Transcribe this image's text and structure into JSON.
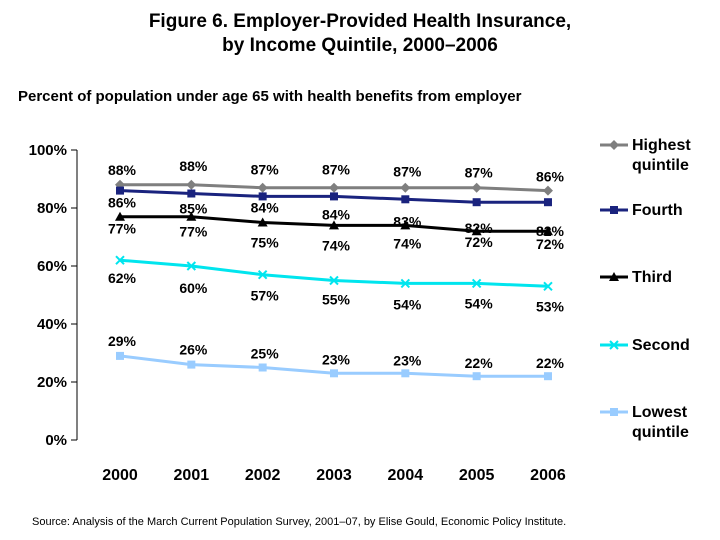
{
  "title_line1": "Figure 6. Employer-Provided Health Insurance,",
  "title_line2": "by Income Quintile, 2000–2006",
  "subtitle": "Percent of population under age 65 with health benefits from employer",
  "source": "Source: Analysis of the March Current Population Survey, 2001–07, by Elise Gould, Economic Policy Institute.",
  "chart_data": {
    "type": "line",
    "x": [
      "2000",
      "2001",
      "2002",
      "2003",
      "2004",
      "2005",
      "2006"
    ],
    "ylim": [
      0,
      100
    ],
    "yticks": [
      "0%",
      "20%",
      "40%",
      "60%",
      "80%",
      "100%"
    ],
    "grid": false,
    "legend_position": "right",
    "series": [
      {
        "name": "Highest quintile",
        "legend_lines": [
          "Highest",
          "quintile"
        ],
        "values": [
          88,
          88,
          87,
          87,
          87,
          87,
          86
        ],
        "labels": [
          "88%",
          "88%",
          "87%",
          "87%",
          "87%",
          "87%",
          "86%"
        ],
        "color": "#7f7f7f",
        "marker": "diamond"
      },
      {
        "name": "Fourth",
        "legend_lines": [
          "Fourth"
        ],
        "values": [
          86,
          85,
          84,
          84,
          83,
          82,
          82
        ],
        "labels": [
          "86%",
          "85%",
          "84%",
          "84%",
          "83%",
          "82%",
          "82%"
        ],
        "color": "#1a237e",
        "marker": "square"
      },
      {
        "name": "Third",
        "legend_lines": [
          "Third"
        ],
        "values": [
          77,
          77,
          75,
          74,
          74,
          72,
          72
        ],
        "labels": [
          "77%",
          "77%",
          "75%",
          "74%",
          "74%",
          "72%",
          "72%"
        ],
        "color": "#000000",
        "marker": "triangle"
      },
      {
        "name": "Second",
        "legend_lines": [
          "Second"
        ],
        "values": [
          62,
          60,
          57,
          55,
          54,
          54,
          53
        ],
        "labels": [
          "62%",
          "60%",
          "57%",
          "55%",
          "54%",
          "54%",
          "53%"
        ],
        "color": "#00e5ee",
        "marker": "x"
      },
      {
        "name": "Lowest quintile",
        "legend_lines": [
          "Lowest",
          "quintile"
        ],
        "values": [
          29,
          26,
          25,
          23,
          23,
          22,
          22
        ],
        "labels": [
          "29%",
          "26%",
          "25%",
          "23%",
          "23%",
          "22%",
          "22%"
        ],
        "color": "#99ccff",
        "marker": "square"
      }
    ]
  }
}
